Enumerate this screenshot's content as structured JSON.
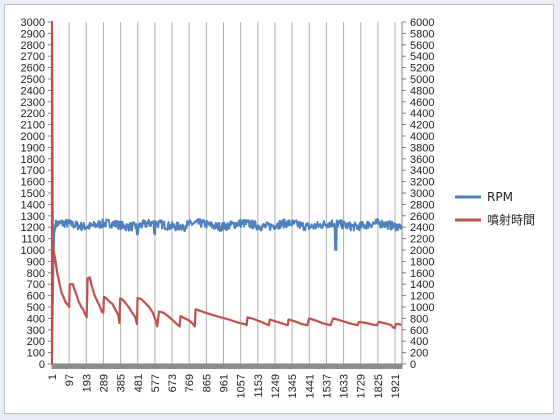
{
  "chart_data": {
    "type": "line",
    "x_ticks": [
      "1",
      "97",
      "193",
      "289",
      "385",
      "481",
      "577",
      "673",
      "769",
      "865",
      "961",
      "1057",
      "1153",
      "1249",
      "1345",
      "1441",
      "1537",
      "1633",
      "1729",
      "1825",
      "1921"
    ],
    "x_range": [
      1,
      1960
    ],
    "y_left": {
      "min": 0,
      "max": 3000,
      "step": 100
    },
    "y_right": {
      "min": 0,
      "max": 6000,
      "step": 200
    },
    "grid": "vertical",
    "legend_position": "right",
    "series": [
      {
        "name": "RPM",
        "axis": "right",
        "color": "#4f81bd",
        "start": [
          [
            1,
            100
          ],
          [
            4,
            700
          ],
          [
            8,
            1600
          ],
          [
            10,
            2000
          ],
          [
            14,
            2300
          ],
          [
            20,
            2450
          ]
        ],
        "base": 2440,
        "noise": 150,
        "dips": [
          [
            480,
            2260
          ],
          [
            575,
            2270
          ],
          [
            740,
            2330
          ],
          [
            1590,
            1980
          ]
        ]
      },
      {
        "name": "噴射時間",
        "axis": "right",
        "color": "#c0504d",
        "points": [
          [
            1,
            0
          ],
          [
            1,
            6000
          ],
          [
            3,
            4300
          ],
          [
            5,
            2400
          ],
          [
            8,
            2020
          ],
          [
            14,
            1920
          ],
          [
            20,
            1820
          ],
          [
            30,
            1600
          ],
          [
            45,
            1380
          ],
          [
            55,
            1250
          ],
          [
            65,
            1180
          ],
          [
            75,
            1100
          ],
          [
            85,
            1050
          ],
          [
            97,
            1000
          ],
          [
            100,
            1400
          ],
          [
            118,
            1400
          ],
          [
            125,
            1320
          ],
          [
            140,
            1200
          ],
          [
            150,
            1100
          ],
          [
            165,
            1000
          ],
          [
            175,
            960
          ],
          [
            185,
            880
          ],
          [
            195,
            820
          ],
          [
            200,
            1500
          ],
          [
            212,
            1520
          ],
          [
            220,
            1420
          ],
          [
            230,
            1300
          ],
          [
            240,
            1200
          ],
          [
            255,
            1100
          ],
          [
            270,
            1000
          ],
          [
            280,
            920
          ],
          [
            288,
            900
          ],
          [
            292,
            1180
          ],
          [
            305,
            1150
          ],
          [
            320,
            1100
          ],
          [
            340,
            1050
          ],
          [
            355,
            960
          ],
          [
            372,
            860
          ],
          [
            378,
            720
          ],
          [
            383,
            1150
          ],
          [
            395,
            1130
          ],
          [
            410,
            1080
          ],
          [
            430,
            1000
          ],
          [
            450,
            900
          ],
          [
            468,
            820
          ],
          [
            476,
            700
          ],
          [
            480,
            1160
          ],
          [
            500,
            1140
          ],
          [
            520,
            1080
          ],
          [
            545,
            1000
          ],
          [
            565,
            900
          ],
          [
            580,
            780
          ],
          [
            590,
            660
          ],
          [
            600,
            920
          ],
          [
            625,
            900
          ],
          [
            650,
            840
          ],
          [
            680,
            760
          ],
          [
            700,
            700
          ],
          [
            715,
            660
          ],
          [
            720,
            840
          ],
          [
            745,
            800
          ],
          [
            770,
            760
          ],
          [
            790,
            700
          ],
          [
            800,
            660
          ],
          [
            805,
            960
          ],
          [
            860,
            900
          ],
          [
            920,
            840
          ],
          [
            990,
            780
          ],
          [
            1050,
            720
          ],
          [
            1080,
            700
          ],
          [
            1090,
            680
          ],
          [
            1095,
            820
          ],
          [
            1130,
            790
          ],
          [
            1170,
            740
          ],
          [
            1200,
            700
          ],
          [
            1215,
            680
          ],
          [
            1220,
            780
          ],
          [
            1260,
            740
          ],
          [
            1300,
            700
          ],
          [
            1320,
            680
          ],
          [
            1325,
            780
          ],
          [
            1360,
            750
          ],
          [
            1400,
            700
          ],
          [
            1430,
            680
          ],
          [
            1440,
            800
          ],
          [
            1480,
            760
          ],
          [
            1520,
            710
          ],
          [
            1560,
            680
          ],
          [
            1575,
            800
          ],
          [
            1620,
            760
          ],
          [
            1660,
            720
          ],
          [
            1700,
            690
          ],
          [
            1710,
            680
          ],
          [
            1720,
            740
          ],
          [
            1760,
            720
          ],
          [
            1800,
            690
          ],
          [
            1820,
            680
          ],
          [
            1830,
            740
          ],
          [
            1870,
            710
          ],
          [
            1900,
            680
          ],
          [
            1910,
            640
          ],
          [
            1920,
            630
          ],
          [
            1925,
            700
          ],
          [
            1945,
            700
          ],
          [
            1955,
            680
          ]
        ]
      }
    ]
  }
}
